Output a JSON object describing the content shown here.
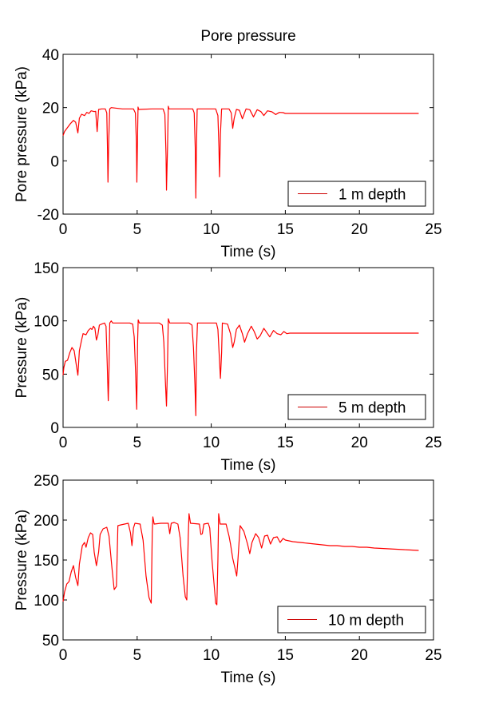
{
  "figure_title": "Pore pressure",
  "line_color": "#ff0000",
  "legend_line_color": "#cc0000",
  "chart_data": [
    {
      "type": "line",
      "title": "Pore pressure",
      "xlabel": "Time (s)",
      "ylabel": "Pore pressure (kPa)",
      "xlim": [
        0,
        25
      ],
      "ylim": [
        -20,
        40
      ],
      "xticks": [
        0,
        5,
        10,
        15,
        20,
        25
      ],
      "yticks": [
        -20,
        0,
        20,
        40
      ],
      "grid": false,
      "legend_position": "bottom-right",
      "series": [
        {
          "name": "1 m depth",
          "color": "#ff0000",
          "points": [
            [
              0.0,
              9.5
            ],
            [
              0.1,
              11
            ],
            [
              0.3,
              12.5
            ],
            [
              0.5,
              14
            ],
            [
              0.7,
              15.2
            ],
            [
              0.85,
              14.5
            ],
            [
              1.0,
              10.5
            ],
            [
              1.1,
              16
            ],
            [
              1.25,
              17.5
            ],
            [
              1.45,
              17
            ],
            [
              1.6,
              18.2
            ],
            [
              1.75,
              17.8
            ],
            [
              1.9,
              18.8
            ],
            [
              2.1,
              18.5
            ],
            [
              2.2,
              18.6
            ],
            [
              2.3,
              11
            ],
            [
              2.4,
              19.3
            ],
            [
              2.6,
              19.5
            ],
            [
              2.85,
              19.5
            ],
            [
              2.95,
              18
            ],
            [
              3.0,
              4
            ],
            [
              3.03,
              -8
            ],
            [
              3.08,
              7
            ],
            [
              3.15,
              19.5
            ],
            [
              3.25,
              20
            ],
            [
              4.0,
              19.5
            ],
            [
              4.75,
              19.5
            ],
            [
              4.88,
              18
            ],
            [
              4.95,
              7
            ],
            [
              4.98,
              -8
            ],
            [
              5.03,
              10
            ],
            [
              5.06,
              20.2
            ],
            [
              5.1,
              19.3
            ],
            [
              6.0,
              19.5
            ],
            [
              6.75,
              19.5
            ],
            [
              6.87,
              17.5
            ],
            [
              6.95,
              2
            ],
            [
              6.98,
              -11
            ],
            [
              7.05,
              5
            ],
            [
              7.1,
              20.5
            ],
            [
              7.15,
              19.5
            ],
            [
              8.0,
              19.5
            ],
            [
              8.75,
              19.5
            ],
            [
              8.85,
              18
            ],
            [
              8.92,
              5
            ],
            [
              8.96,
              -14
            ],
            [
              9.0,
              4
            ],
            [
              9.05,
              19.5
            ],
            [
              10.0,
              19.5
            ],
            [
              10.3,
              19.5
            ],
            [
              10.45,
              17
            ],
            [
              10.52,
              5
            ],
            [
              10.56,
              -6
            ],
            [
              10.62,
              10
            ],
            [
              10.7,
              19.5
            ],
            [
              11.2,
              19.5
            ],
            [
              11.35,
              18
            ],
            [
              11.45,
              12.2
            ],
            [
              11.55,
              16
            ],
            [
              11.7,
              19.3
            ],
            [
              11.9,
              19
            ],
            [
              12.1,
              15.8
            ],
            [
              12.35,
              19.5
            ],
            [
              12.6,
              19.2
            ],
            [
              12.85,
              16.5
            ],
            [
              13.1,
              19.2
            ],
            [
              13.35,
              18.5
            ],
            [
              13.55,
              17
            ],
            [
              13.8,
              18.8
            ],
            [
              14.1,
              18.4
            ],
            [
              14.35,
              17.4
            ],
            [
              14.6,
              18.2
            ],
            [
              14.85,
              18.1
            ],
            [
              15.0,
              17.8
            ],
            [
              16.0,
              17.8
            ],
            [
              24.0,
              17.8
            ]
          ]
        }
      ]
    },
    {
      "type": "line",
      "title": "",
      "xlabel": "Time (s)",
      "ylabel": "Pressure (kPa)",
      "xlim": [
        0,
        25
      ],
      "ylim": [
        0,
        150
      ],
      "xticks": [
        0,
        5,
        10,
        15,
        20,
        25
      ],
      "yticks": [
        0,
        50,
        100,
        150
      ],
      "grid": false,
      "legend_position": "bottom-right",
      "series": [
        {
          "name": "5 m depth",
          "color": "#ff0000",
          "points": [
            [
              0.0,
              49
            ],
            [
              0.05,
              56
            ],
            [
              0.15,
              62
            ],
            [
              0.3,
              63
            ],
            [
              0.45,
              70
            ],
            [
              0.6,
              75
            ],
            [
              0.75,
              72
            ],
            [
              0.9,
              58
            ],
            [
              1.0,
              49
            ],
            [
              1.1,
              72
            ],
            [
              1.25,
              82
            ],
            [
              1.35,
              88
            ],
            [
              1.55,
              87
            ],
            [
              1.7,
              91
            ],
            [
              1.85,
              93
            ],
            [
              1.95,
              92
            ],
            [
              2.05,
              95
            ],
            [
              2.15,
              93
            ],
            [
              2.25,
              82
            ],
            [
              2.35,
              87
            ],
            [
              2.45,
              96
            ],
            [
              2.6,
              97
            ],
            [
              2.8,
              98
            ],
            [
              2.9,
              95
            ],
            [
              2.98,
              60
            ],
            [
              3.05,
              25
            ],
            [
              3.1,
              55
            ],
            [
              3.15,
              98
            ],
            [
              3.25,
              100
            ],
            [
              3.35,
              98
            ],
            [
              4.5,
              98
            ],
            [
              4.7,
              97
            ],
            [
              4.8,
              85
            ],
            [
              4.9,
              50
            ],
            [
              4.97,
              17
            ],
            [
              5.03,
              80
            ],
            [
              5.07,
              101
            ],
            [
              5.15,
              98
            ],
            [
              6.5,
              98
            ],
            [
              6.7,
              96
            ],
            [
              6.8,
              80
            ],
            [
              6.9,
              45
            ],
            [
              6.98,
              20
            ],
            [
              7.05,
              60
            ],
            [
              7.1,
              102
            ],
            [
              7.2,
              98
            ],
            [
              8.5,
              98
            ],
            [
              8.7,
              96
            ],
            [
              8.8,
              75
            ],
            [
              8.9,
              40
            ],
            [
              8.96,
              11
            ],
            [
              9.0,
              70
            ],
            [
              9.07,
              98
            ],
            [
              10.0,
              98
            ],
            [
              10.35,
              98
            ],
            [
              10.45,
              92
            ],
            [
              10.55,
              65
            ],
            [
              10.62,
              46
            ],
            [
              10.7,
              70
            ],
            [
              10.75,
              98
            ],
            [
              11.1,
              97
            ],
            [
              11.3,
              88
            ],
            [
              11.45,
              75
            ],
            [
              11.55,
              80
            ],
            [
              11.7,
              92
            ],
            [
              11.9,
              96
            ],
            [
              12.1,
              88
            ],
            [
              12.25,
              80
            ],
            [
              12.45,
              88
            ],
            [
              12.7,
              95
            ],
            [
              12.9,
              90
            ],
            [
              13.1,
              83
            ],
            [
              13.3,
              86
            ],
            [
              13.55,
              93
            ],
            [
              13.75,
              89
            ],
            [
              13.95,
              85
            ],
            [
              14.2,
              91
            ],
            [
              14.45,
              88
            ],
            [
              14.7,
              87
            ],
            [
              14.9,
              90
            ],
            [
              15.1,
              88
            ],
            [
              15.3,
              88.5
            ],
            [
              24.0,
              88.5
            ]
          ]
        }
      ]
    },
    {
      "type": "line",
      "title": "",
      "xlabel": "Time (s)",
      "ylabel": "Pressure (kPa)",
      "xlim": [
        0,
        25
      ],
      "ylim": [
        50,
        250
      ],
      "xticks": [
        0,
        5,
        10,
        15,
        20,
        25
      ],
      "yticks": [
        50,
        100,
        150,
        200,
        250
      ],
      "grid": false,
      "legend_position": "bottom-right",
      "series": [
        {
          "name": "10 m depth",
          "color": "#ff0000",
          "points": [
            [
              0.0,
              98
            ],
            [
              0.1,
              110
            ],
            [
              0.25,
              120
            ],
            [
              0.4,
              123
            ],
            [
              0.55,
              135
            ],
            [
              0.7,
              143
            ],
            [
              0.85,
              128
            ],
            [
              1.0,
              118
            ],
            [
              1.1,
              145
            ],
            [
              1.3,
              168
            ],
            [
              1.45,
              172
            ],
            [
              1.55,
              166
            ],
            [
              1.7,
              178
            ],
            [
              1.85,
              184
            ],
            [
              2.0,
              182
            ],
            [
              2.1,
              160
            ],
            [
              2.25,
              143
            ],
            [
              2.4,
              160
            ],
            [
              2.5,
              182
            ],
            [
              2.7,
              189
            ],
            [
              2.95,
              191
            ],
            [
              3.1,
              180
            ],
            [
              3.3,
              140
            ],
            [
              3.45,
              113
            ],
            [
              3.6,
              117
            ],
            [
              3.7,
              193
            ],
            [
              3.9,
              194
            ],
            [
              4.4,
              196
            ],
            [
              4.55,
              184
            ],
            [
              4.65,
              168
            ],
            [
              4.75,
              190
            ],
            [
              4.85,
              196
            ],
            [
              5.2,
              195
            ],
            [
              5.4,
              175
            ],
            [
              5.6,
              130
            ],
            [
              5.8,
              103
            ],
            [
              5.95,
              96
            ],
            [
              6.02,
              185
            ],
            [
              6.06,
              204
            ],
            [
              6.15,
              195
            ],
            [
              6.6,
              196
            ],
            [
              7.1,
              196
            ],
            [
              7.2,
              183
            ],
            [
              7.3,
              196
            ],
            [
              7.5,
              197
            ],
            [
              7.75,
              195
            ],
            [
              7.9,
              178
            ],
            [
              8.1,
              130
            ],
            [
              8.25,
              104
            ],
            [
              8.35,
              100
            ],
            [
              8.45,
              180
            ],
            [
              8.5,
              208
            ],
            [
              8.6,
              196
            ],
            [
              9.2,
              195
            ],
            [
              9.3,
              182
            ],
            [
              9.4,
              183
            ],
            [
              9.5,
              195
            ],
            [
              9.8,
              196
            ],
            [
              9.9,
              190
            ],
            [
              10.05,
              150
            ],
            [
              10.2,
              118
            ],
            [
              10.3,
              96
            ],
            [
              10.38,
              94
            ],
            [
              10.45,
              150
            ],
            [
              10.5,
              208
            ],
            [
              10.6,
              195
            ],
            [
              11.0,
              195
            ],
            [
              11.2,
              180
            ],
            [
              11.3,
              170
            ],
            [
              11.45,
              152
            ],
            [
              11.6,
              140
            ],
            [
              11.72,
              130
            ],
            [
              11.8,
              150
            ],
            [
              11.95,
              193
            ],
            [
              12.2,
              186
            ],
            [
              12.45,
              170
            ],
            [
              12.6,
              158
            ],
            [
              12.75,
              172
            ],
            [
              13.0,
              183
            ],
            [
              13.2,
              178
            ],
            [
              13.4,
              165
            ],
            [
              13.6,
              180
            ],
            [
              13.8,
              181
            ],
            [
              14.0,
              170
            ],
            [
              14.2,
              178
            ],
            [
              14.45,
              179
            ],
            [
              14.65,
              172
            ],
            [
              14.85,
              177
            ],
            [
              15.0,
              175
            ],
            [
              15.5,
              173
            ],
            [
              16.0,
              172
            ],
            [
              16.5,
              171
            ],
            [
              17.0,
              170
            ],
            [
              17.5,
              169
            ],
            [
              18.0,
              168
            ],
            [
              18.5,
              168
            ],
            [
              19.0,
              167
            ],
            [
              19.5,
              167
            ],
            [
              20.0,
              166
            ],
            [
              20.5,
              166
            ],
            [
              21.0,
              165
            ],
            [
              21.5,
              164.5
            ],
            [
              22.0,
              164
            ],
            [
              22.5,
              163.5
            ],
            [
              23.0,
              163
            ],
            [
              23.5,
              162.5
            ],
            [
              24.0,
              162
            ]
          ]
        }
      ]
    }
  ]
}
